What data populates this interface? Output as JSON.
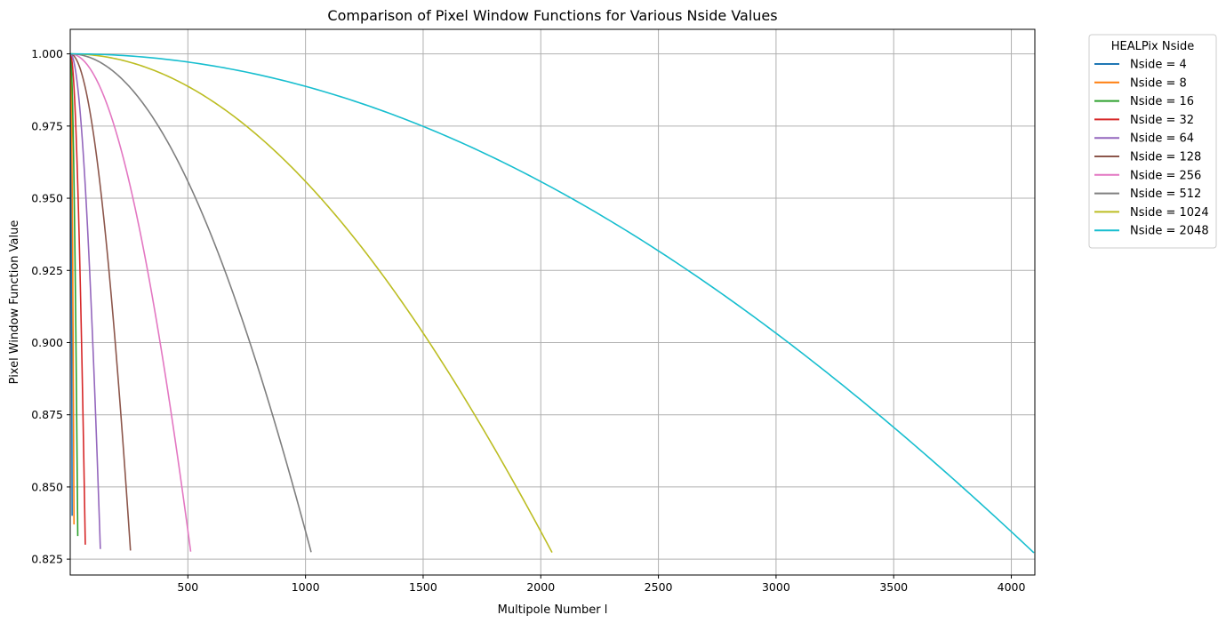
{
  "chart_data": {
    "type": "line",
    "title": "Comparison of Pixel Window Functions for Various Nside Values",
    "xlabel": "Multipole Number l",
    "ylabel": "Pixel Window Function Value",
    "xlim": [
      0,
      4100
    ],
    "ylim": [
      0.8195,
      1.0085
    ],
    "xticks": [
      500,
      1000,
      1500,
      2000,
      2500,
      3000,
      3500,
      4000
    ],
    "yticks": [
      0.825,
      0.85,
      0.875,
      0.9,
      0.925,
      0.95,
      0.975,
      1.0
    ],
    "ytick_labels": [
      "0.825",
      "0.850",
      "0.875",
      "0.900",
      "0.925",
      "0.950",
      "0.975",
      "1.000"
    ],
    "grid": true,
    "legend": {
      "title": "HEALPix Nside",
      "placement": "outside-top-right"
    },
    "series_model": "w(l) = exp(-k * (l/lmax)^2), lmax = 2*Nside",
    "series": [
      {
        "name": "Nside = 4",
        "nside": 4,
        "lmax": 8,
        "end_value": 0.84,
        "color": "#1f77b4"
      },
      {
        "name": "Nside = 8",
        "nside": 8,
        "lmax": 16,
        "end_value": 0.837,
        "color": "#ff7f0e"
      },
      {
        "name": "Nside = 16",
        "nside": 16,
        "lmax": 32,
        "end_value": 0.833,
        "color": "#2ca02c"
      },
      {
        "name": "Nside = 32",
        "nside": 32,
        "lmax": 64,
        "end_value": 0.83,
        "color": "#d62728"
      },
      {
        "name": "Nside = 64",
        "nside": 64,
        "lmax": 128,
        "end_value": 0.8285,
        "color": "#9467bd"
      },
      {
        "name": "Nside = 128",
        "nside": 128,
        "lmax": 256,
        "end_value": 0.828,
        "color": "#8c564b"
      },
      {
        "name": "Nside = 256",
        "nside": 256,
        "lmax": 512,
        "end_value": 0.8276,
        "color": "#e377c2"
      },
      {
        "name": "Nside = 512",
        "nside": 512,
        "lmax": 1024,
        "end_value": 0.8274,
        "color": "#7f7f7f"
      },
      {
        "name": "Nside = 1024",
        "nside": 1024,
        "lmax": 2048,
        "end_value": 0.8273,
        "color": "#bcbd22"
      },
      {
        "name": "Nside = 2048",
        "nside": 2048,
        "lmax": 4096,
        "end_value": 0.8272,
        "color": "#17becf"
      }
    ]
  }
}
